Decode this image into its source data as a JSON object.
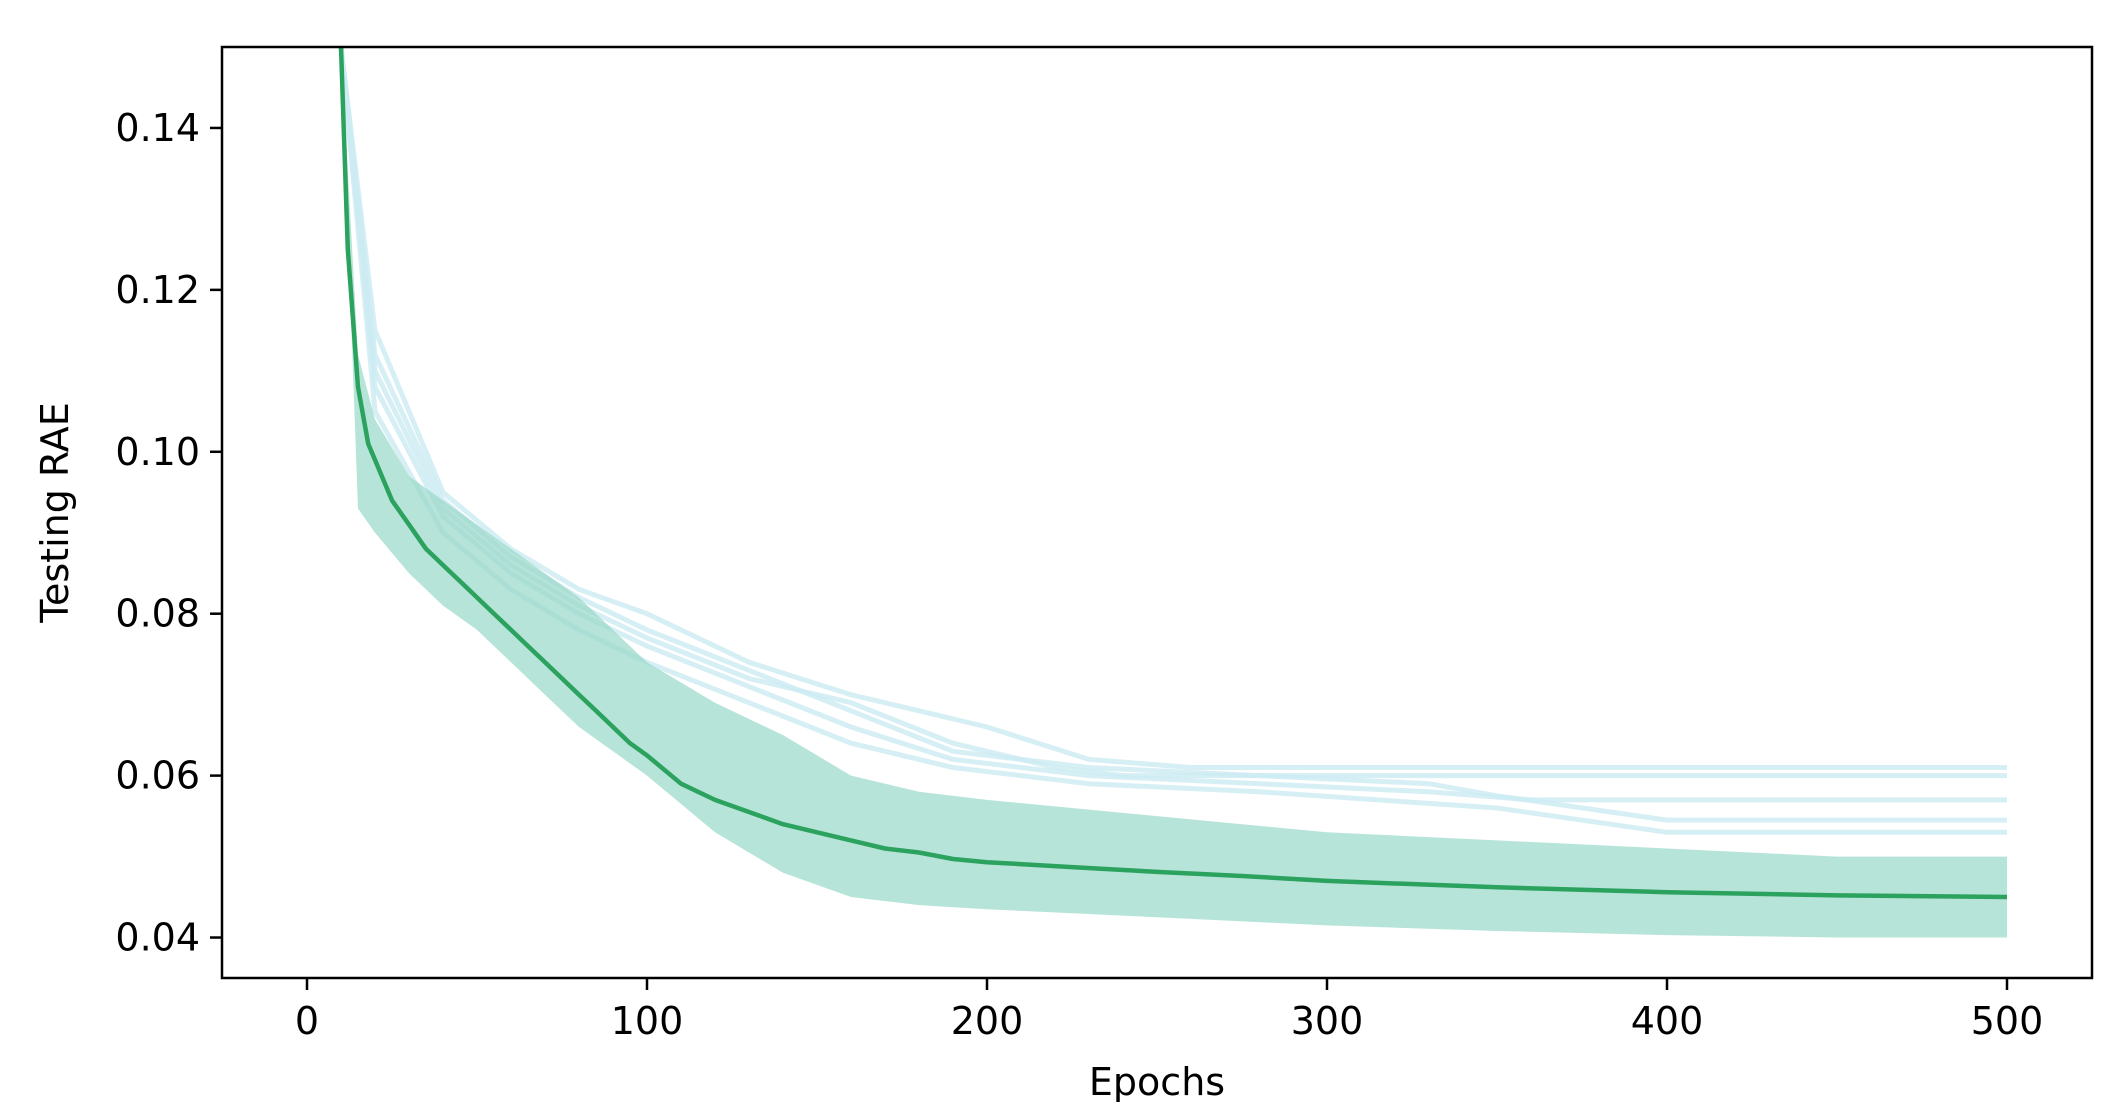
{
  "chart_data": {
    "type": "line",
    "title": "",
    "xlabel": "Epochs",
    "ylabel": "Testing RAE",
    "xlim": [
      -25,
      525
    ],
    "ylim": [
      0.035,
      0.15
    ],
    "xticks": [
      0,
      100,
      200,
      300,
      400,
      500
    ],
    "xtick_labels": [
      "0",
      "100",
      "200",
      "300",
      "400",
      "500"
    ],
    "yticks": [
      0.04,
      0.06,
      0.08,
      0.1,
      0.12,
      0.14
    ],
    "ytick_labels": [
      "0.04",
      "0.06",
      "0.08",
      "0.10",
      "0.12",
      "0.14"
    ],
    "grid": false,
    "legend": null,
    "colors": {
      "mean_line": "#2ca25f",
      "std_band": "#99d8c9",
      "individual_runs": "#ccebf2",
      "axes": "#000000"
    },
    "series": [
      {
        "role": "mean",
        "x": [
          10,
          12,
          15,
          18,
          20,
          25,
          30,
          35,
          40,
          45,
          50,
          55,
          60,
          65,
          70,
          75,
          80,
          85,
          90,
          95,
          100,
          110,
          120,
          130,
          140,
          150,
          160,
          170,
          180,
          190,
          200,
          225,
          250,
          275,
          300,
          350,
          400,
          450,
          500
        ],
        "y": [
          0.15,
          0.125,
          0.108,
          0.101,
          0.099,
          0.094,
          0.091,
          0.088,
          0.086,
          0.084,
          0.082,
          0.08,
          0.078,
          0.076,
          0.074,
          0.072,
          0.07,
          0.068,
          0.066,
          0.064,
          0.0625,
          0.059,
          0.057,
          0.0555,
          0.054,
          0.053,
          0.052,
          0.051,
          0.0505,
          0.0497,
          0.0493,
          0.0487,
          0.0481,
          0.0476,
          0.047,
          0.0462,
          0.0456,
          0.0452,
          0.045
        ]
      },
      {
        "role": "std_upper",
        "x": [
          10,
          15,
          20,
          30,
          40,
          50,
          60,
          70,
          80,
          90,
          100,
          120,
          140,
          160,
          180,
          200,
          250,
          300,
          350,
          400,
          450,
          500
        ],
        "y": [
          0.15,
          0.112,
          0.104,
          0.097,
          0.094,
          0.091,
          0.088,
          0.085,
          0.082,
          0.078,
          0.074,
          0.069,
          0.065,
          0.06,
          0.058,
          0.057,
          0.055,
          0.053,
          0.052,
          0.051,
          0.05,
          0.05
        ]
      },
      {
        "role": "std_lower",
        "x": [
          10,
          15,
          20,
          30,
          40,
          50,
          60,
          70,
          80,
          90,
          100,
          120,
          140,
          160,
          180,
          200,
          250,
          300,
          350,
          400,
          450,
          500
        ],
        "y": [
          0.15,
          0.093,
          0.09,
          0.085,
          0.081,
          0.078,
          0.074,
          0.07,
          0.066,
          0.063,
          0.06,
          0.053,
          0.048,
          0.045,
          0.044,
          0.0435,
          0.0425,
          0.0415,
          0.0408,
          0.0403,
          0.04,
          0.04
        ]
      },
      {
        "role": "run_plateau",
        "x": [
          10,
          20,
          40,
          60,
          80,
          100,
          130,
          160,
          180,
          200,
          230,
          260,
          300,
          400,
          500
        ],
        "y": [
          0.15,
          0.115,
          0.095,
          0.088,
          0.083,
          0.08,
          0.074,
          0.07,
          0.068,
          0.066,
          0.062,
          0.061,
          0.061,
          0.061,
          0.061
        ]
      },
      {
        "role": "run_plateau",
        "x": [
          10,
          20,
          40,
          60,
          80,
          100,
          130,
          160,
          190,
          220,
          240,
          300,
          400,
          500
        ],
        "y": [
          0.15,
          0.11,
          0.093,
          0.086,
          0.081,
          0.077,
          0.072,
          0.069,
          0.064,
          0.061,
          0.06,
          0.06,
          0.06,
          0.06
        ]
      },
      {
        "role": "run_plateau",
        "x": [
          10,
          20,
          40,
          60,
          80,
          100,
          130,
          160,
          190,
          230,
          280,
          330,
          360,
          400,
          500
        ],
        "y": [
          0.15,
          0.108,
          0.092,
          0.085,
          0.08,
          0.076,
          0.071,
          0.066,
          0.062,
          0.06,
          0.059,
          0.058,
          0.057,
          0.057,
          0.057
        ]
      },
      {
        "role": "run_plateau",
        "x": [
          10,
          20,
          40,
          60,
          80,
          100,
          130,
          160,
          190,
          230,
          280,
          330,
          350,
          400,
          500
        ],
        "y": [
          0.15,
          0.112,
          0.094,
          0.087,
          0.082,
          0.078,
          0.073,
          0.068,
          0.063,
          0.061,
          0.06,
          0.059,
          0.0575,
          0.0545,
          0.0545
        ]
      },
      {
        "role": "run_plateau",
        "x": [
          10,
          20,
          40,
          60,
          80,
          100,
          130,
          160,
          190,
          230,
          280,
          350,
          400,
          500
        ],
        "y": [
          0.15,
          0.105,
          0.09,
          0.083,
          0.078,
          0.074,
          0.069,
          0.064,
          0.061,
          0.059,
          0.058,
          0.056,
          0.053,
          0.053
        ]
      }
    ]
  }
}
